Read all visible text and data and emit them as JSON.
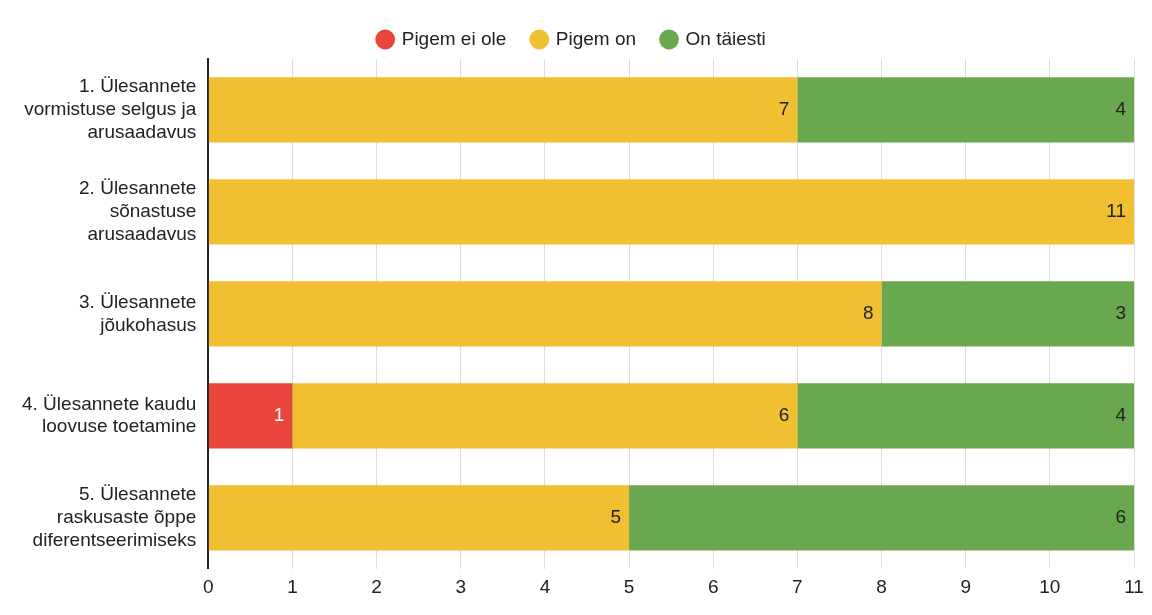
{
  "chart_data": {
    "type": "bar",
    "orientation": "horizontal",
    "stacked": true,
    "categories": [
      "1. Ülesannete vormistuse selgus ja arusaadavus",
      "2. Ülesannete sõnastuse arusaadavus",
      "3. Ülesannete jõukohasus",
      "4. Ülesannete kaudu loovuse toetamine",
      "5. Ülesannete raskusaste õppe diferentseerimiseks"
    ],
    "series": [
      {
        "name": "Pigem ei ole",
        "color": "#e8453c",
        "values": [
          null,
          null,
          null,
          1,
          null
        ]
      },
      {
        "name": "Pigem on",
        "color": "#f0bf32",
        "values": [
          7,
          11,
          8,
          6,
          5
        ]
      },
      {
        "name": "On täiesti",
        "color": "#6aa84f",
        "values": [
          4,
          null,
          3,
          4,
          6
        ]
      }
    ],
    "xlim": [
      0,
      11
    ],
    "xticks": [
      0,
      1,
      2,
      3,
      4,
      5,
      6,
      7,
      8,
      9,
      10,
      11
    ],
    "grid": "x",
    "legend": "top",
    "data_labels": true
  }
}
